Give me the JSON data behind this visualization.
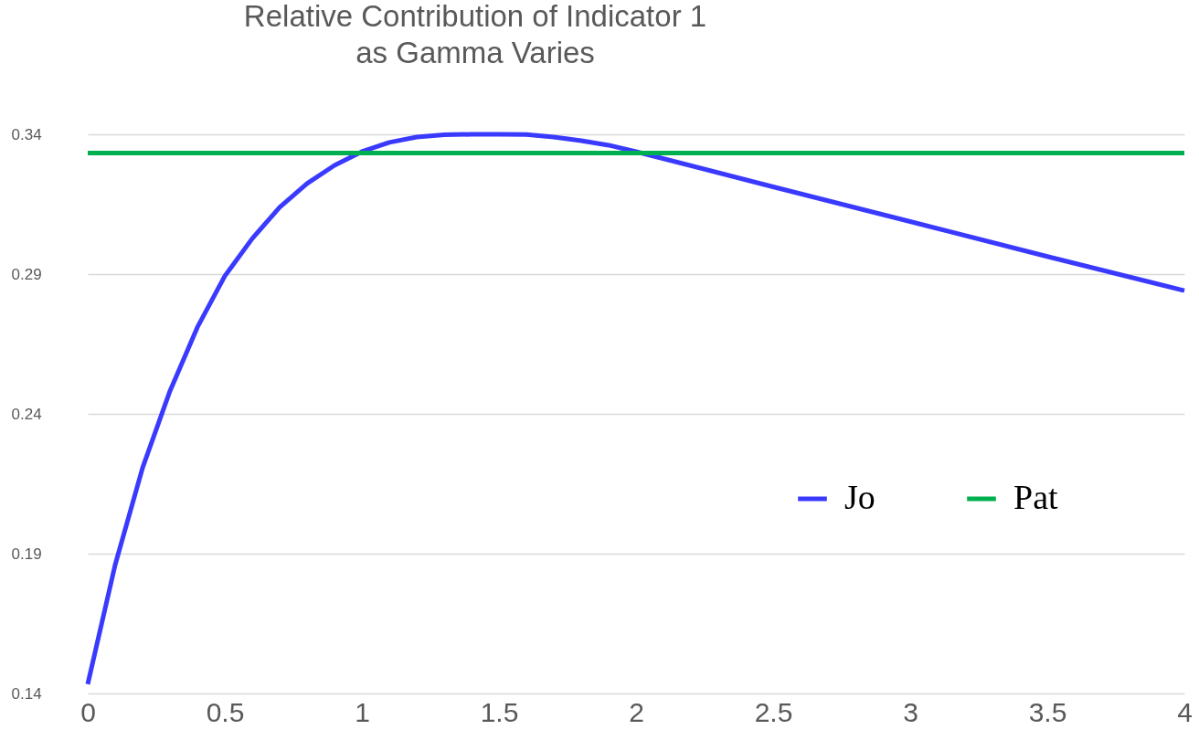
{
  "chart_data": {
    "type": "line",
    "title": "Relative Contribution of Indicator 1\nas Gamma Varies",
    "x": [
      0,
      0.1,
      0.2,
      0.3,
      0.4,
      0.5,
      0.6,
      0.7,
      0.8,
      0.9,
      1,
      1.1,
      1.2,
      1.3,
      1.4,
      1.5,
      1.6,
      1.7,
      1.8,
      1.9,
      2,
      2.5,
      3,
      3.5,
      4
    ],
    "series": [
      {
        "name": "Jo",
        "color": "#3a3aff",
        "values": [
          0.1433,
          0.186,
          0.2207,
          0.2482,
          0.271,
          0.2893,
          0.3027,
          0.3139,
          0.3224,
          0.3289,
          0.3338,
          0.3371,
          0.339,
          0.3398,
          0.34,
          0.34,
          0.3399,
          0.339,
          0.3377,
          0.3361,
          0.3338,
          0.3212,
          0.3088,
          0.2963,
          0.2841
        ]
      },
      {
        "name": "Pat",
        "color": "#00b050",
        "x": [
          0,
          4
        ],
        "values": [
          0.3333,
          0.3333
        ]
      }
    ],
    "xlim": [
      0,
      4
    ],
    "xticks": [
      0,
      0.5,
      1,
      1.5,
      2,
      2.5,
      3,
      3.5,
      4
    ],
    "ylim": [
      0.14,
      0.34
    ],
    "yticks": [
      0.14,
      0.19,
      0.24,
      0.29,
      0.34
    ],
    "grid": "y",
    "legend": "right",
    "marker": "none",
    "line_style": "solid"
  }
}
